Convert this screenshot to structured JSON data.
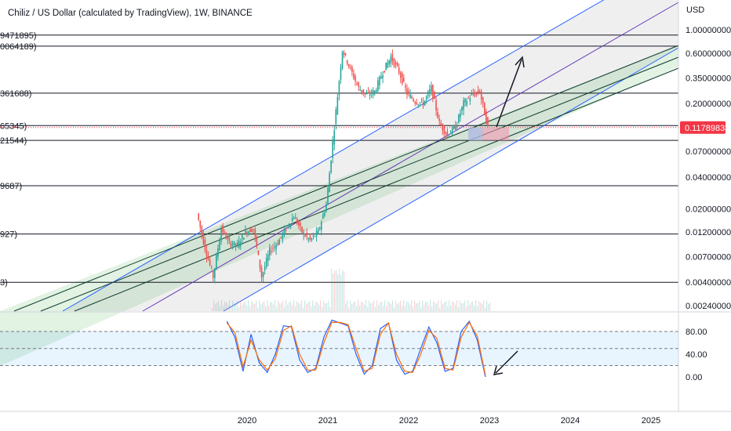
{
  "chart_data": {
    "type": "candlestick",
    "title": "Chiliz / US Dollar (calculated by TradingView), 1W, BINANCE",
    "currency_label": "USD",
    "price_scale": "log",
    "y_ticks": [
      "1.00000000",
      "0.60000000",
      "0.35000000",
      "0.20000000",
      "0.07000000",
      "0.04000000",
      "0.02000000",
      "0.01200000",
      "0.00700000",
      "0.00400000",
      "0.00240000"
    ],
    "y_tick_values": [
      1.0,
      0.6,
      0.35,
      0.2,
      0.07,
      0.04,
      0.02,
      0.012,
      0.007,
      0.004,
      0.0024
    ],
    "x_ticks": [
      "2020",
      "2021",
      "2022",
      "2023",
      "2024",
      "2025"
    ],
    "x_tick_years": [
      2020,
      2021,
      2022,
      2023,
      2024,
      2025
    ],
    "current_price": "0.11789833",
    "current_price_value": 0.11789833,
    "level_labels": [
      {
        "text": "9471895)",
        "price": 0.89
      },
      {
        "text": "0064189)",
        "price": 0.7
      },
      {
        "text": "361688)",
        "price": 0.25
      },
      {
        "text": "65345)",
        "price": 0.123
      },
      {
        "text": "21544)",
        "price": 0.089
      },
      {
        "text": "9687)",
        "price": 0.033
      },
      {
        "text": "927)",
        "price": 0.0115
      },
      {
        "text": "3)",
        "price": 0.004
      }
    ],
    "series": [
      {
        "name": "",
        "points": [
          [
            2019.4,
            0.018
          ],
          [
            2019.5,
            0.0085
          ],
          [
            2019.6,
            0.0045
          ],
          [
            2019.7,
            0.013
          ],
          [
            2019.8,
            0.0095
          ],
          [
            2019.9,
            0.009
          ],
          [
            2020.0,
            0.012
          ],
          [
            2020.1,
            0.013
          ],
          [
            2020.2,
            0.0045
          ],
          [
            2020.3,
            0.008
          ],
          [
            2020.4,
            0.0095
          ],
          [
            2020.5,
            0.013
          ],
          [
            2020.6,
            0.017
          ],
          [
            2020.7,
            0.012
          ],
          [
            2020.8,
            0.01
          ],
          [
            2020.9,
            0.012
          ],
          [
            2021.0,
            0.022
          ],
          [
            2021.1,
            0.12
          ],
          [
            2021.2,
            0.65
          ],
          [
            2021.3,
            0.42
          ],
          [
            2021.4,
            0.28
          ],
          [
            2021.5,
            0.24
          ],
          [
            2021.6,
            0.26
          ],
          [
            2021.7,
            0.4
          ],
          [
            2021.8,
            0.55
          ],
          [
            2021.9,
            0.4
          ],
          [
            2022.0,
            0.25
          ],
          [
            2022.1,
            0.21
          ],
          [
            2022.2,
            0.2
          ],
          [
            2022.3,
            0.28
          ],
          [
            2022.4,
            0.13
          ],
          [
            2022.5,
            0.1
          ],
          [
            2022.6,
            0.12
          ],
          [
            2022.7,
            0.2
          ],
          [
            2022.8,
            0.24
          ],
          [
            2022.9,
            0.26
          ],
          [
            2023.0,
            0.118
          ]
        ]
      }
    ],
    "indicator": {
      "type": "stochastic",
      "y_ticks": [
        "80.00",
        "40.00",
        "0.00"
      ],
      "y_tick_values": [
        80,
        40,
        0
      ],
      "series": [
        {
          "name": "",
          "color": "#2962ff",
          "points": [
            [
              2019.75,
              98
            ],
            [
              2019.85,
              70
            ],
            [
              2019.95,
              10
            ],
            [
              2020.05,
              75
            ],
            [
              2020.15,
              25
            ],
            [
              2020.25,
              8
            ],
            [
              2020.35,
              40
            ],
            [
              2020.45,
              90
            ],
            [
              2020.55,
              88
            ],
            [
              2020.65,
              30
            ],
            [
              2020.75,
              8
            ],
            [
              2020.85,
              15
            ],
            [
              2020.95,
              70
            ],
            [
              2021.05,
              100
            ],
            [
              2021.15,
              95
            ],
            [
              2021.25,
              90
            ],
            [
              2021.35,
              40
            ],
            [
              2021.45,
              5
            ],
            [
              2021.55,
              20
            ],
            [
              2021.65,
              85
            ],
            [
              2021.75,
              95
            ],
            [
              2021.85,
              30
            ],
            [
              2021.95,
              5
            ],
            [
              2022.05,
              10
            ],
            [
              2022.15,
              50
            ],
            [
              2022.25,
              88
            ],
            [
              2022.35,
              60
            ],
            [
              2022.45,
              10
            ],
            [
              2022.55,
              15
            ],
            [
              2022.65,
              80
            ],
            [
              2022.75,
              98
            ],
            [
              2022.85,
              65
            ],
            [
              2022.95,
              0
            ]
          ]
        },
        {
          "name": "",
          "color": "#ff6d00",
          "points": [
            [
              2019.75,
              95
            ],
            [
              2019.85,
              78
            ],
            [
              2019.95,
              18
            ],
            [
              2020.05,
              65
            ],
            [
              2020.15,
              30
            ],
            [
              2020.25,
              12
            ],
            [
              2020.35,
              32
            ],
            [
              2020.45,
              82
            ],
            [
              2020.55,
              90
            ],
            [
              2020.65,
              40
            ],
            [
              2020.75,
              12
            ],
            [
              2020.85,
              12
            ],
            [
              2020.95,
              60
            ],
            [
              2021.05,
              96
            ],
            [
              2021.15,
              96
            ],
            [
              2021.25,
              92
            ],
            [
              2021.35,
              50
            ],
            [
              2021.45,
              10
            ],
            [
              2021.55,
              15
            ],
            [
              2021.65,
              75
            ],
            [
              2021.75,
              95
            ],
            [
              2021.85,
              40
            ],
            [
              2021.95,
              10
            ],
            [
              2022.05,
              8
            ],
            [
              2022.15,
              40
            ],
            [
              2022.25,
              82
            ],
            [
              2022.35,
              68
            ],
            [
              2022.45,
              15
            ],
            [
              2022.55,
              12
            ],
            [
              2022.65,
              70
            ],
            [
              2022.75,
              96
            ],
            [
              2022.85,
              72
            ],
            [
              2022.95,
              3
            ]
          ]
        }
      ]
    },
    "legend": "none",
    "colors": {
      "up": "#26a69a",
      "down": "#ef5350",
      "channel_line": "#2962ff",
      "price_label": "#f23645"
    }
  }
}
